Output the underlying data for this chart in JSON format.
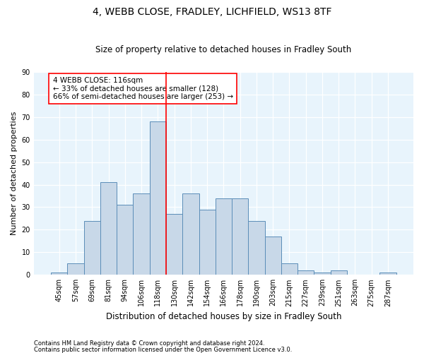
{
  "title1": "4, WEBB CLOSE, FRADLEY, LICHFIELD, WS13 8TF",
  "title2": "Size of property relative to detached houses in Fradley South",
  "xlabel": "Distribution of detached houses by size in Fradley South",
  "ylabel": "Number of detached properties",
  "footer1": "Contains HM Land Registry data © Crown copyright and database right 2024.",
  "footer2": "Contains public sector information licensed under the Open Government Licence v3.0.",
  "bin_labels": [
    "45sqm",
    "57sqm",
    "69sqm",
    "81sqm",
    "94sqm",
    "106sqm",
    "118sqm",
    "130sqm",
    "142sqm",
    "154sqm",
    "166sqm",
    "178sqm",
    "190sqm",
    "203sqm",
    "215sqm",
    "227sqm",
    "239sqm",
    "251sqm",
    "263sqm",
    "275sqm",
    "287sqm"
  ],
  "bar_heights": [
    1,
    5,
    24,
    41,
    31,
    36,
    68,
    27,
    36,
    29,
    34,
    34,
    24,
    17,
    5,
    2,
    1,
    2,
    0,
    0,
    1
  ],
  "bar_color": "#c8d8e8",
  "bar_edge_color": "#5b8db8",
  "vline_x": 6.5,
  "annotation_text": "4 WEBB CLOSE: 116sqm\n← 33% of detached houses are smaller (128)\n66% of semi-detached houses are larger (253) →",
  "ylim": [
    0,
    90
  ],
  "yticks": [
    0,
    10,
    20,
    30,
    40,
    50,
    60,
    70,
    80,
    90
  ],
  "bg_color": "#e8f4fc",
  "grid_color": "#ffffff",
  "title1_fontsize": 10,
  "title2_fontsize": 8.5,
  "ylabel_fontsize": 8,
  "xlabel_fontsize": 8.5,
  "tick_fontsize": 7,
  "annot_fontsize": 7.5,
  "footer_fontsize": 6
}
